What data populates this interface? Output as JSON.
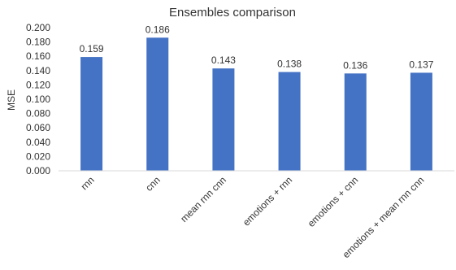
{
  "chart_data": {
    "type": "bar",
    "title": "Ensembles comparison",
    "xlabel": "",
    "ylabel": "MSE",
    "categories": [
      "rnn",
      "cnn",
      "mean rnn  cnn",
      "emotions + rnn",
      "emotions + cnn",
      "emotions + mean rnn cnn"
    ],
    "values": [
      0.159,
      0.186,
      0.143,
      0.138,
      0.136,
      0.137
    ],
    "value_labels": [
      "0.159",
      "0.186",
      "0.143",
      "0.138",
      "0.136",
      "0.137"
    ],
    "ylim": [
      0,
      0.2
    ],
    "yticks": [
      0,
      0.02,
      0.04,
      0.06,
      0.08,
      0.1,
      0.12,
      0.14,
      0.16,
      0.18,
      0.2
    ],
    "ytick_labels": [
      "0.000",
      "0.020",
      "0.040",
      "0.060",
      "0.080",
      "0.100",
      "0.120",
      "0.140",
      "0.160",
      "0.180",
      "0.200"
    ],
    "grid": false,
    "legend": "none",
    "bar_color": "#4472C4",
    "axis_color": "#d9d9d9",
    "text_color": "#333333"
  }
}
